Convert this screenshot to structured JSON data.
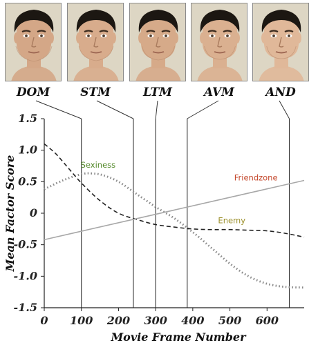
{
  "faces": [
    {
      "label": "DOM",
      "frame": 100
    },
    {
      "label": "STM",
      "frame": 240
    },
    {
      "label": "LTM",
      "frame": 300
    },
    {
      "label": "AVM",
      "frame": 385
    },
    {
      "label": "AND",
      "frame": 660
    }
  ],
  "colors": {
    "sexiness": "#558a2c",
    "friendzone": "#c4472b",
    "enemy": "#9b8f2a",
    "dotted": "#8a8a8a",
    "dashed": "#222222",
    "line": "#a8a8a8"
  },
  "chart_data": {
    "type": "line",
    "title": "",
    "xlabel": "Movie Frame Number",
    "ylabel": "Mean Factor Score",
    "xlim": [
      0,
      700
    ],
    "ylim": [
      -1.5,
      1.5
    ],
    "xticks": [
      0,
      100,
      200,
      300,
      400,
      500,
      600
    ],
    "xtick_labels": [
      "0",
      "100",
      "200",
      "300",
      "400",
      "500",
      "600"
    ],
    "yticks": [
      1.5,
      1.0,
      0.5,
      0,
      -0.5,
      -1.0,
      -1.5
    ],
    "ytick_labels": [
      "1.5",
      "1.0",
      "0.5",
      "0",
      "-0.5",
      "-1.0",
      "-1.5"
    ],
    "grid": false,
    "legend": "none",
    "vertical_lines": [
      100,
      240,
      300,
      385,
      660
    ],
    "annotations": [
      {
        "text": "Sexiness",
        "x": 145,
        "y": 0.72,
        "color_key": "sexiness",
        "series": "dotted"
      },
      {
        "text": "Friendzone",
        "x": 570,
        "y": 0.52,
        "color_key": "friendzone",
        "series": "line"
      },
      {
        "text": "Enemy",
        "x": 505,
        "y": -0.16,
        "color_key": "enemy",
        "series": "dashed"
      }
    ],
    "series": [
      {
        "style": "dotted",
        "x": [
          0,
          50,
          100,
          130,
          160,
          200,
          250,
          300,
          350,
          400,
          450,
          500,
          550,
          600,
          650,
          700
        ],
        "y": [
          0.38,
          0.52,
          0.62,
          0.63,
          0.6,
          0.5,
          0.3,
          0.1,
          -0.08,
          -0.3,
          -0.55,
          -0.8,
          -1.0,
          -1.12,
          -1.17,
          -1.18
        ]
      },
      {
        "style": "dashed",
        "x": [
          0,
          30,
          60,
          100,
          150,
          200,
          250,
          300,
          350,
          400,
          450,
          500,
          550,
          600,
          650,
          700
        ],
        "y": [
          1.1,
          0.95,
          0.75,
          0.48,
          0.2,
          0.0,
          -0.1,
          -0.18,
          -0.22,
          -0.25,
          -0.26,
          -0.26,
          -0.27,
          -0.28,
          -0.32,
          -0.38
        ]
      },
      {
        "style": "solid",
        "x": [
          0,
          700
        ],
        "y": [
          -0.42,
          0.52
        ]
      }
    ]
  }
}
